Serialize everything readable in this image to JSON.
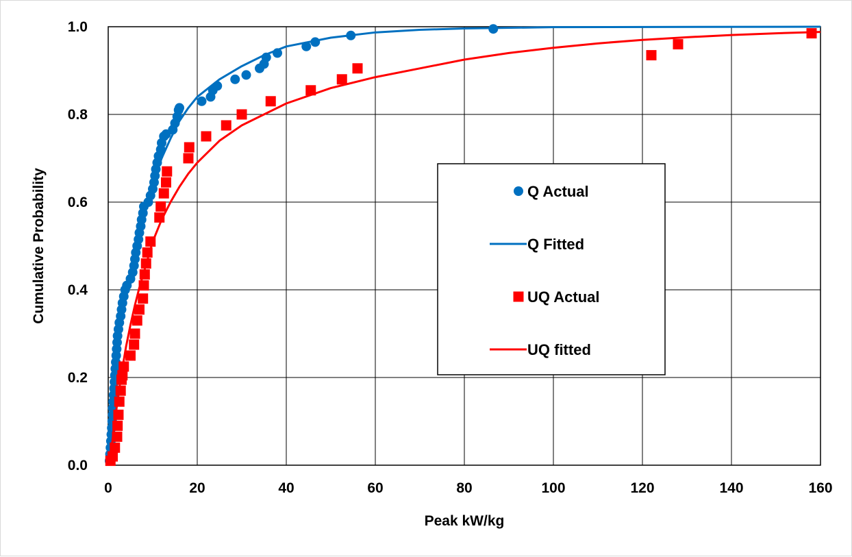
{
  "chart_data": {
    "type": "scatter",
    "title": "",
    "xlabel": "Peak kW/kg",
    "ylabel": "Cumulative Probability",
    "xlim": [
      0,
      160
    ],
    "ylim": [
      0,
      1.0
    ],
    "x_ticks": [
      "0",
      "20",
      "40",
      "60",
      "80",
      "100",
      "120",
      "140",
      "160"
    ],
    "y_ticks": [
      "0.0",
      "0.2",
      "0.4",
      "0.6",
      "0.8",
      "1.0"
    ],
    "grid": true,
    "legend_position": "center-right",
    "colors": {
      "q": "#0070C0",
      "uq": "#FF0000"
    },
    "series": [
      {
        "name": "Q Actual",
        "kind": "markers",
        "marker": "circle",
        "color": "#0070C0",
        "points": [
          [
            0.3,
            0.01
          ],
          [
            0.4,
            0.025
          ],
          [
            0.5,
            0.04
          ],
          [
            0.6,
            0.055
          ],
          [
            0.7,
            0.07
          ],
          [
            0.8,
            0.085
          ],
          [
            0.9,
            0.1
          ],
          [
            1.0,
            0.115
          ],
          [
            1.0,
            0.13
          ],
          [
            1.1,
            0.145
          ],
          [
            1.2,
            0.16
          ],
          [
            1.3,
            0.175
          ],
          [
            1.4,
            0.19
          ],
          [
            1.5,
            0.205
          ],
          [
            1.6,
            0.22
          ],
          [
            1.7,
            0.235
          ],
          [
            1.8,
            0.25
          ],
          [
            1.9,
            0.265
          ],
          [
            2.0,
            0.28
          ],
          [
            2.1,
            0.295
          ],
          [
            2.3,
            0.31
          ],
          [
            2.5,
            0.325
          ],
          [
            2.8,
            0.34
          ],
          [
            3.0,
            0.355
          ],
          [
            3.2,
            0.37
          ],
          [
            3.5,
            0.385
          ],
          [
            3.8,
            0.4
          ],
          [
            4.2,
            0.41
          ],
          [
            5.0,
            0.425
          ],
          [
            5.5,
            0.44
          ],
          [
            5.8,
            0.455
          ],
          [
            6.0,
            0.47
          ],
          [
            6.2,
            0.485
          ],
          [
            6.5,
            0.5
          ],
          [
            6.8,
            0.515
          ],
          [
            7.0,
            0.53
          ],
          [
            7.3,
            0.545
          ],
          [
            7.5,
            0.56
          ],
          [
            7.8,
            0.575
          ],
          [
            8.0,
            0.59
          ],
          [
            9.0,
            0.6
          ],
          [
            9.5,
            0.615
          ],
          [
            10.0,
            0.63
          ],
          [
            10.3,
            0.645
          ],
          [
            10.5,
            0.66
          ],
          [
            10.7,
            0.675
          ],
          [
            11.0,
            0.69
          ],
          [
            11.3,
            0.705
          ],
          [
            11.8,
            0.72
          ],
          [
            12.0,
            0.735
          ],
          [
            12.5,
            0.75
          ],
          [
            13.0,
            0.755
          ],
          [
            14.5,
            0.765
          ],
          [
            15.0,
            0.78
          ],
          [
            15.5,
            0.795
          ],
          [
            15.8,
            0.81
          ],
          [
            16.0,
            0.815
          ],
          [
            21.0,
            0.83
          ],
          [
            23.0,
            0.84
          ],
          [
            23.5,
            0.855
          ],
          [
            24.5,
            0.865
          ],
          [
            28.5,
            0.88
          ],
          [
            31.0,
            0.89
          ],
          [
            34.0,
            0.905
          ],
          [
            35.0,
            0.915
          ],
          [
            35.5,
            0.93
          ],
          [
            38.0,
            0.94
          ],
          [
            44.5,
            0.955
          ],
          [
            46.5,
            0.965
          ],
          [
            54.5,
            0.98
          ],
          [
            86.5,
            0.995
          ]
        ]
      },
      {
        "name": "Q Fitted",
        "kind": "line",
        "color": "#0070C0",
        "points": [
          [
            0.2,
            0.0
          ],
          [
            0.5,
            0.07
          ],
          [
            1,
            0.155
          ],
          [
            1.5,
            0.21
          ],
          [
            2,
            0.26
          ],
          [
            3,
            0.33
          ],
          [
            4,
            0.385
          ],
          [
            5,
            0.435
          ],
          [
            6,
            0.48
          ],
          [
            7,
            0.525
          ],
          [
            8,
            0.565
          ],
          [
            9,
            0.605
          ],
          [
            10,
            0.64
          ],
          [
            11,
            0.67
          ],
          [
            12,
            0.7
          ],
          [
            14,
            0.745
          ],
          [
            16,
            0.785
          ],
          [
            18,
            0.815
          ],
          [
            20,
            0.84
          ],
          [
            25,
            0.88
          ],
          [
            30,
            0.91
          ],
          [
            35,
            0.935
          ],
          [
            40,
            0.955
          ],
          [
            50,
            0.975
          ],
          [
            60,
            0.987
          ],
          [
            70,
            0.993
          ],
          [
            80,
            0.996
          ],
          [
            100,
            0.999
          ],
          [
            160,
            1.0
          ]
        ]
      },
      {
        "name": "UQ Actual",
        "kind": "markers",
        "marker": "square",
        "color": "#FF0000",
        "points": [
          [
            0.5,
            0.01
          ],
          [
            1.0,
            0.02
          ],
          [
            1.5,
            0.04
          ],
          [
            2.0,
            0.065
          ],
          [
            2.1,
            0.09
          ],
          [
            2.3,
            0.115
          ],
          [
            2.5,
            0.145
          ],
          [
            2.8,
            0.17
          ],
          [
            3.0,
            0.195
          ],
          [
            3.2,
            0.205
          ],
          [
            3.5,
            0.225
          ],
          [
            5.0,
            0.25
          ],
          [
            5.8,
            0.275
          ],
          [
            6.0,
            0.3
          ],
          [
            6.5,
            0.33
          ],
          [
            7.0,
            0.355
          ],
          [
            7.8,
            0.38
          ],
          [
            8.0,
            0.41
          ],
          [
            8.2,
            0.435
          ],
          [
            8.5,
            0.46
          ],
          [
            8.8,
            0.485
          ],
          [
            9.5,
            0.51
          ],
          [
            11.5,
            0.565
          ],
          [
            11.8,
            0.59
          ],
          [
            12.5,
            0.62
          ],
          [
            13.0,
            0.645
          ],
          [
            13.2,
            0.67
          ],
          [
            18.0,
            0.7
          ],
          [
            18.2,
            0.725
          ],
          [
            22.0,
            0.75
          ],
          [
            26.5,
            0.775
          ],
          [
            30.0,
            0.8
          ],
          [
            36.5,
            0.83
          ],
          [
            45.5,
            0.855
          ],
          [
            52.5,
            0.88
          ],
          [
            56.0,
            0.905
          ],
          [
            122.0,
            0.935
          ],
          [
            128.0,
            0.96
          ],
          [
            158.0,
            0.985
          ]
        ]
      },
      {
        "name": "UQ fitted",
        "kind": "line",
        "color": "#FF0000",
        "points": [
          [
            0.3,
            0.0
          ],
          [
            1,
            0.06
          ],
          [
            2,
            0.14
          ],
          [
            3,
            0.21
          ],
          [
            4,
            0.27
          ],
          [
            5,
            0.32
          ],
          [
            6,
            0.365
          ],
          [
            7,
            0.405
          ],
          [
            8,
            0.44
          ],
          [
            9,
            0.475
          ],
          [
            10,
            0.51
          ],
          [
            12,
            0.56
          ],
          [
            14,
            0.6
          ],
          [
            16,
            0.635
          ],
          [
            18,
            0.665
          ],
          [
            20,
            0.69
          ],
          [
            25,
            0.74
          ],
          [
            30,
            0.775
          ],
          [
            35,
            0.8
          ],
          [
            40,
            0.825
          ],
          [
            50,
            0.86
          ],
          [
            60,
            0.885
          ],
          [
            70,
            0.905
          ],
          [
            80,
            0.925
          ],
          [
            90,
            0.94
          ],
          [
            100,
            0.952
          ],
          [
            110,
            0.962
          ],
          [
            120,
            0.97
          ],
          [
            130,
            0.976
          ],
          [
            140,
            0.981
          ],
          [
            150,
            0.985
          ],
          [
            160,
            0.988
          ]
        ]
      }
    ]
  }
}
